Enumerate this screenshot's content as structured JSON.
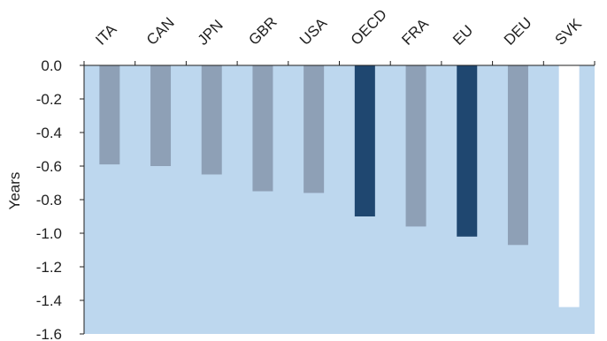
{
  "chart_data": {
    "type": "bar",
    "title": "",
    "xlabel": "",
    "ylabel": "Years",
    "ylim": [
      -1.6,
      0.0
    ],
    "yticks": [
      "0.0",
      "-0.2",
      "-0.4",
      "-0.6",
      "-0.8",
      "-1.0",
      "-1.2",
      "-1.4",
      "-1.6"
    ],
    "categories": [
      "ITA",
      "CAN",
      "JPN",
      "GBR",
      "USA",
      "OECD",
      "FRA",
      "EU",
      "DEU",
      "SVK"
    ],
    "values": [
      -0.59,
      -0.6,
      -0.65,
      -0.75,
      -0.76,
      -0.9,
      -0.96,
      -1.02,
      -1.07,
      -1.44
    ],
    "grid": false,
    "legend": "none",
    "x_axis_position": "top",
    "plot_background": "#bdd7ee",
    "bar_colors": [
      "#8ea0b6",
      "#8ea0b6",
      "#8ea0b6",
      "#8ea0b6",
      "#8ea0b6",
      "#1f4770",
      "#8ea0b6",
      "#1f4770",
      "#8ea0b6",
      "#ffffff"
    ]
  }
}
